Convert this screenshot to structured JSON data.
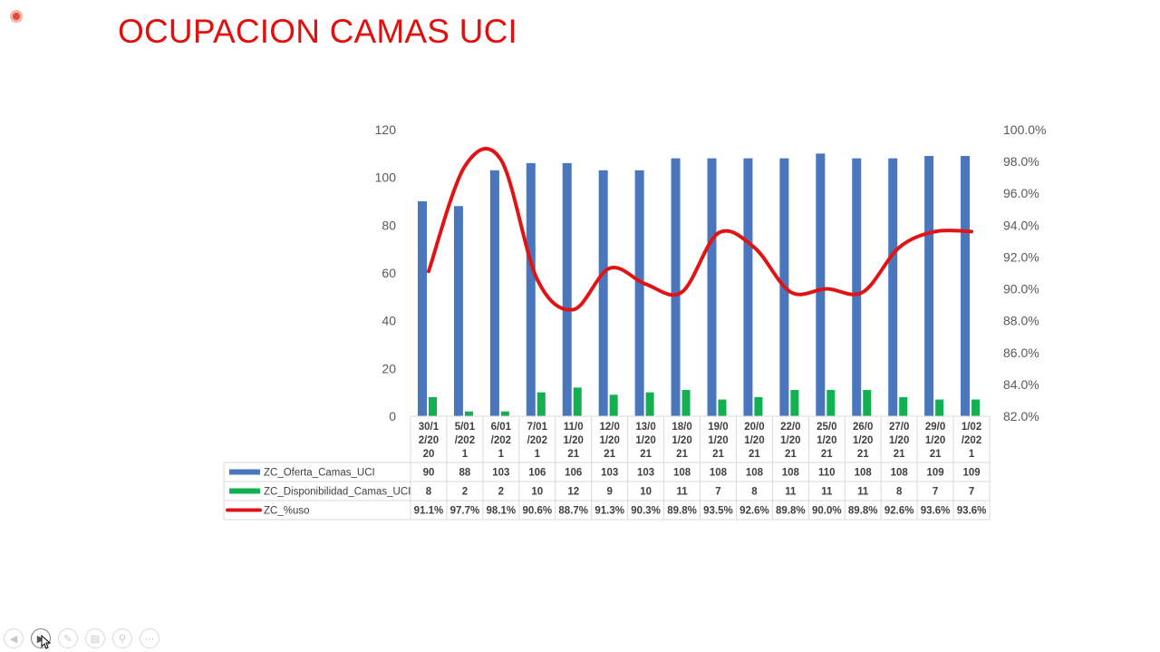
{
  "title": "OCUPACION CAMAS UCI",
  "toolbar": {
    "buttons": [
      {
        "icon": "prev-arrow-icon"
      },
      {
        "icon": "next-arrow-icon"
      },
      {
        "icon": "pen-icon"
      },
      {
        "icon": "slides-icon"
      },
      {
        "icon": "zoom-icon"
      },
      {
        "icon": "more-icon"
      }
    ]
  },
  "chart_data": {
    "type": "bar",
    "title": "",
    "categories": [
      "30/12/2020",
      "5/01/2021",
      "6/01/2021",
      "7/01/2021",
      "11/01/2021",
      "12/01/2021",
      "13/01/2021",
      "18/01/2021",
      "19/01/2021",
      "20/01/2021",
      "22/01/2021",
      "25/01/2021",
      "26/01/2021",
      "27/01/2021",
      "29/01/2021",
      "1/02/2021"
    ],
    "category_label_lines": [
      [
        "30/1",
        "2/20",
        "20"
      ],
      [
        "5/01",
        "/202",
        "1"
      ],
      [
        "6/01",
        "/202",
        "1"
      ],
      [
        "7/01",
        "/202",
        "1"
      ],
      [
        "11/0",
        "1/20",
        "21"
      ],
      [
        "12/0",
        "1/20",
        "21"
      ],
      [
        "13/0",
        "1/20",
        "21"
      ],
      [
        "18/0",
        "1/20",
        "21"
      ],
      [
        "19/0",
        "1/20",
        "21"
      ],
      [
        "20/0",
        "1/20",
        "21"
      ],
      [
        "22/0",
        "1/20",
        "21"
      ],
      [
        "25/0",
        "1/20",
        "21"
      ],
      [
        "26/0",
        "1/20",
        "21"
      ],
      [
        "27/0",
        "1/20",
        "21"
      ],
      [
        "29/0",
        "1/20",
        "21"
      ],
      [
        "1/02",
        "/202",
        "1"
      ]
    ],
    "series": [
      {
        "name": "ZC_Oferta_Camas_UCI",
        "type": "bar",
        "axis": "left",
        "color": "#4a76be",
        "values": [
          90,
          88,
          103,
          106,
          106,
          103,
          103,
          108,
          108,
          108,
          108,
          110,
          108,
          108,
          109,
          109
        ]
      },
      {
        "name": "ZC_Disponibilidad_Camas_UCI",
        "type": "bar",
        "axis": "left",
        "color": "#12b050",
        "values": [
          8,
          2,
          2,
          10,
          12,
          9,
          10,
          11,
          7,
          8,
          11,
          11,
          11,
          8,
          7,
          7
        ]
      },
      {
        "name": "ZC_%uso",
        "type": "line",
        "axis": "right",
        "smooth": true,
        "color": "#e01414",
        "values": [
          91.1,
          97.7,
          98.1,
          90.6,
          88.7,
          91.3,
          90.3,
          89.8,
          93.5,
          92.6,
          89.8,
          90.0,
          89.8,
          92.6,
          93.6,
          93.6
        ],
        "labels": [
          "91.1%",
          "97.7%",
          "98.1%",
          "90.6%",
          "88.7%",
          "91.3%",
          "90.3%",
          "89.8%",
          "93.5%",
          "92.6%",
          "89.8%",
          "90.0%",
          "89.8%",
          "92.6%",
          "93.6%",
          "93.6%"
        ]
      }
    ],
    "ylim_left": [
      0,
      120
    ],
    "yticks_left": [
      "0",
      "20",
      "40",
      "60",
      "80",
      "100",
      "120"
    ],
    "ylim_right": [
      82,
      100
    ],
    "yticks_right": [
      "82.0%",
      "84.0%",
      "86.0%",
      "88.0%",
      "90.0%",
      "92.0%",
      "94.0%",
      "96.0%",
      "98.0%",
      "100.0%"
    ],
    "grid": false,
    "data_table": true
  }
}
